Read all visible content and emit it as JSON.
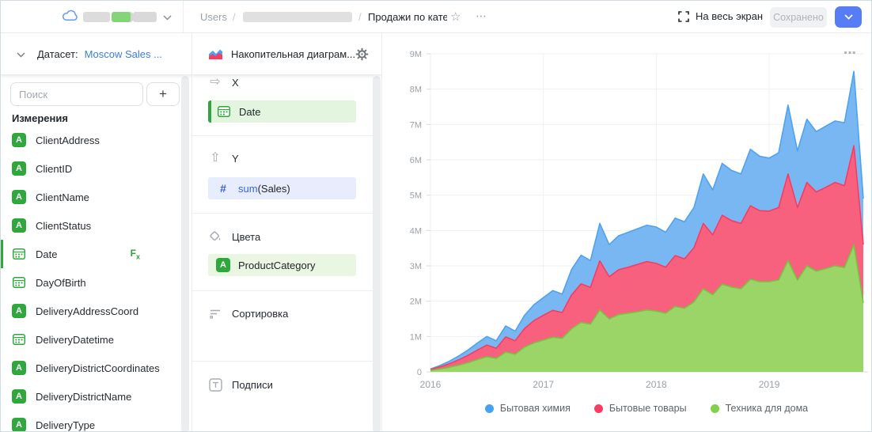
{
  "colors": {
    "accent_blue_button": "#567df6",
    "link_blue": "#3b7fd6",
    "field_green": "#2fa73c",
    "series_blue": "#4da2f1",
    "series_red": "#f93b62",
    "series_green": "#74c43e"
  },
  "header": {
    "breadcrumb_root": "Users",
    "breadcrumb_separator": "/",
    "breadcrumb_current": "Продажи по кате",
    "star_icon": "☆",
    "more_icon": "⋯",
    "fullscreen_label": "На весь экран",
    "saved_button_label": "Сохранено"
  },
  "dataset_panel": {
    "dataset_label": "Датасет:",
    "dataset_name": "Moscow Sales ...",
    "search_placeholder": "Поиск",
    "add_button_label": "+",
    "dimensions_title": "Измерения",
    "fields": [
      {
        "name": "ClientAddress",
        "type": "string"
      },
      {
        "name": "ClientID",
        "type": "string"
      },
      {
        "name": "ClientName",
        "type": "string"
      },
      {
        "name": "ClientStatus",
        "type": "string"
      },
      {
        "name": "Date",
        "type": "date",
        "selected": true,
        "formula_badge": "Fx"
      },
      {
        "name": "DayOfBirth",
        "type": "date"
      },
      {
        "name": "DeliveryAddressCoord",
        "type": "string"
      },
      {
        "name": "DeliveryDatetime",
        "type": "date"
      },
      {
        "name": "DeliveryDistrictCoordinates",
        "type": "string"
      },
      {
        "name": "DeliveryDistrictName",
        "type": "string"
      },
      {
        "name": "DeliveryType",
        "type": "string"
      }
    ]
  },
  "config_panel": {
    "chart_type_label": "Накопительная диаграм...",
    "x_section": {
      "label": "X",
      "field": "Date",
      "icon": "⇨"
    },
    "y_section": {
      "label": "Y",
      "aggregation": "sum",
      "field": "(Sales)",
      "icon": "⇧"
    },
    "colors_section": {
      "label": "Цвета",
      "field": "ProductCategory"
    },
    "sort_section": {
      "label": "Сортировка"
    },
    "labels_section": {
      "label": "Подписи"
    }
  },
  "chart_panel": {
    "menu_icon": "⋯"
  },
  "chart_data": {
    "type": "area",
    "stacked": true,
    "x_unit": "month",
    "x_start": "2016-01",
    "x_ticks": [
      {
        "label": "2016",
        "index": 0
      },
      {
        "label": "2017",
        "index": 12
      },
      {
        "label": "2018",
        "index": 24
      },
      {
        "label": "2019",
        "index": 36
      }
    ],
    "y_ticks": [
      "0",
      "1M",
      "2M",
      "3M",
      "4M",
      "5M",
      "6M",
      "7M",
      "8M",
      "9M"
    ],
    "ylim_millions": [
      0,
      9
    ],
    "values_unit": "millions (sum(Sales))",
    "series": [
      {
        "name": "Техника для дома",
        "stroke": "#74c43e",
        "fill": "#9bd568",
        "dot": "#7fd04a",
        "values": [
          0.04,
          0.08,
          0.13,
          0.19,
          0.26,
          0.35,
          0.43,
          0.38,
          0.56,
          0.5,
          0.7,
          0.82,
          0.9,
          0.98,
          0.95,
          1.22,
          1.4,
          1.35,
          1.75,
          1.5,
          1.62,
          1.66,
          1.7,
          1.75,
          1.72,
          1.66,
          1.85,
          1.8,
          1.98,
          2.35,
          2.18,
          2.48,
          2.4,
          2.35,
          2.62,
          2.55,
          2.55,
          2.6,
          3.15,
          2.6,
          3.0,
          2.85,
          2.92,
          3.0,
          2.95,
          3.6,
          1.95
        ]
      },
      {
        "name": "Бытовые товары",
        "stroke": "#f93b62",
        "fill": "#f8617e",
        "dot": "#fb3b62",
        "values": [
          0.03,
          0.06,
          0.1,
          0.15,
          0.21,
          0.27,
          0.33,
          0.29,
          0.43,
          0.38,
          0.53,
          0.63,
          0.7,
          0.76,
          0.73,
          0.96,
          1.09,
          1.04,
          1.39,
          1.19,
          1.27,
          1.3,
          1.34,
          1.37,
          1.35,
          1.3,
          1.44,
          1.4,
          1.53,
          1.85,
          1.7,
          1.95,
          1.88,
          1.85,
          2.08,
          2.01,
          2.0,
          2.05,
          2.45,
          2.05,
          2.36,
          2.24,
          2.3,
          2.36,
          2.32,
          2.8,
          1.65
        ]
      },
      {
        "name": "Бытовая химия",
        "stroke": "#4da2f1",
        "fill": "#79b7f3",
        "dot": "#46a2f2",
        "values": [
          0.01,
          0.04,
          0.07,
          0.11,
          0.15,
          0.2,
          0.24,
          0.21,
          0.31,
          0.27,
          0.37,
          0.45,
          0.5,
          0.56,
          0.52,
          0.72,
          0.81,
          0.76,
          1.06,
          0.91,
          0.96,
          0.99,
          1.01,
          1.03,
          1.03,
          0.99,
          1.06,
          1.05,
          1.14,
          1.4,
          1.27,
          1.47,
          1.42,
          1.4,
          1.6,
          1.54,
          1.5,
          1.55,
          1.95,
          1.6,
          1.79,
          1.71,
          1.73,
          1.74,
          1.78,
          2.1,
          1.3
        ]
      }
    ],
    "legend": [
      {
        "name": "Бытовая химия",
        "color": "#46a2f2"
      },
      {
        "name": "Бытовые товары",
        "color": "#fb3b62"
      },
      {
        "name": "Техника для дома",
        "color": "#7fd04a"
      }
    ],
    "legend_position": "bottom",
    "grid": true
  }
}
